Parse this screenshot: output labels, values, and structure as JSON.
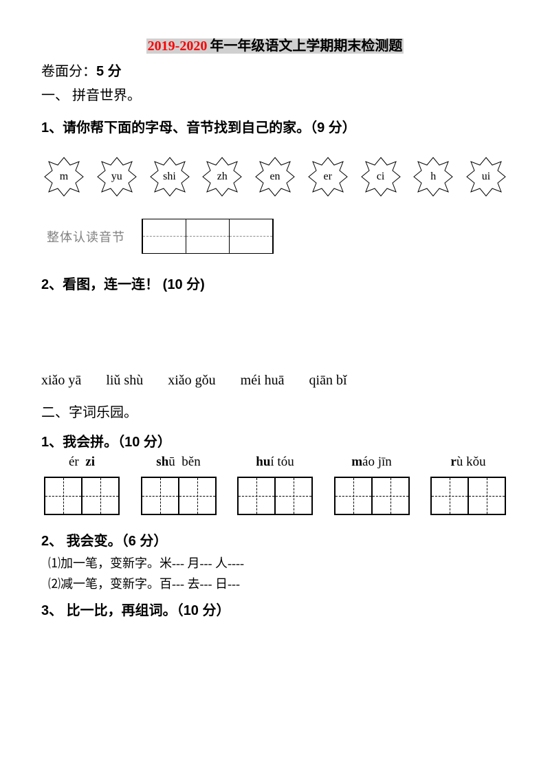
{
  "title_year": "2019-2020",
  "title_rest": "年一年级语文上学期期末检测题",
  "score_line_a": "卷面分：",
  "score_line_b": "5 分",
  "section1": "一、 拼音世界。",
  "q1_a": "1、请你帮下面的字母、音节找到自己的家。（",
  "q1_b": "9 分）",
  "stars": [
    "m",
    "yu",
    "shi",
    "zh",
    "en",
    "er",
    "ci",
    "h",
    "ui"
  ],
  "ztrd_label": "整体认读音节",
  "q2_a": "2、看图，连一连！",
  "q2_b": " (10 分)",
  "q2_pinyin": [
    "xiǎo yā",
    "liǔ shù",
    "xiǎo gǒu",
    "méi huā",
    "qiān bǐ"
  ],
  "section2": "二、字词乐园。",
  "q3_a": "1、我会拼。（",
  "q3_b": "10 分）",
  "q3_items": [
    {
      "p": [
        {
          "t": "ér  ",
          "b": false
        },
        {
          "t": "zi",
          "b": true
        }
      ]
    },
    {
      "p": [
        {
          "t": "sh",
          "b": true
        },
        {
          "t": "ū  běn",
          "b": false
        }
      ]
    },
    {
      "p": [
        {
          "t": "hu",
          "b": true
        },
        {
          "t": "í tóu",
          "b": false
        }
      ]
    },
    {
      "p": [
        {
          "t": "m",
          "b": true
        },
        {
          "t": "áo jīn",
          "b": false
        }
      ]
    },
    {
      "p": [
        {
          "t": "r",
          "b": true
        },
        {
          "t": "ù kǒu",
          "b": false
        }
      ]
    }
  ],
  "q4_a": "2、 我会变。（",
  "q4_b": "6 分）",
  "q4_sub1": "⑴加一笔，变新字。米---   月---   人----",
  "q4_sub2": "⑵减一笔，变新字。百---   去---   日---",
  "q5_a": "3、 比一比，再组词。（",
  "q5_b": "10 分）"
}
